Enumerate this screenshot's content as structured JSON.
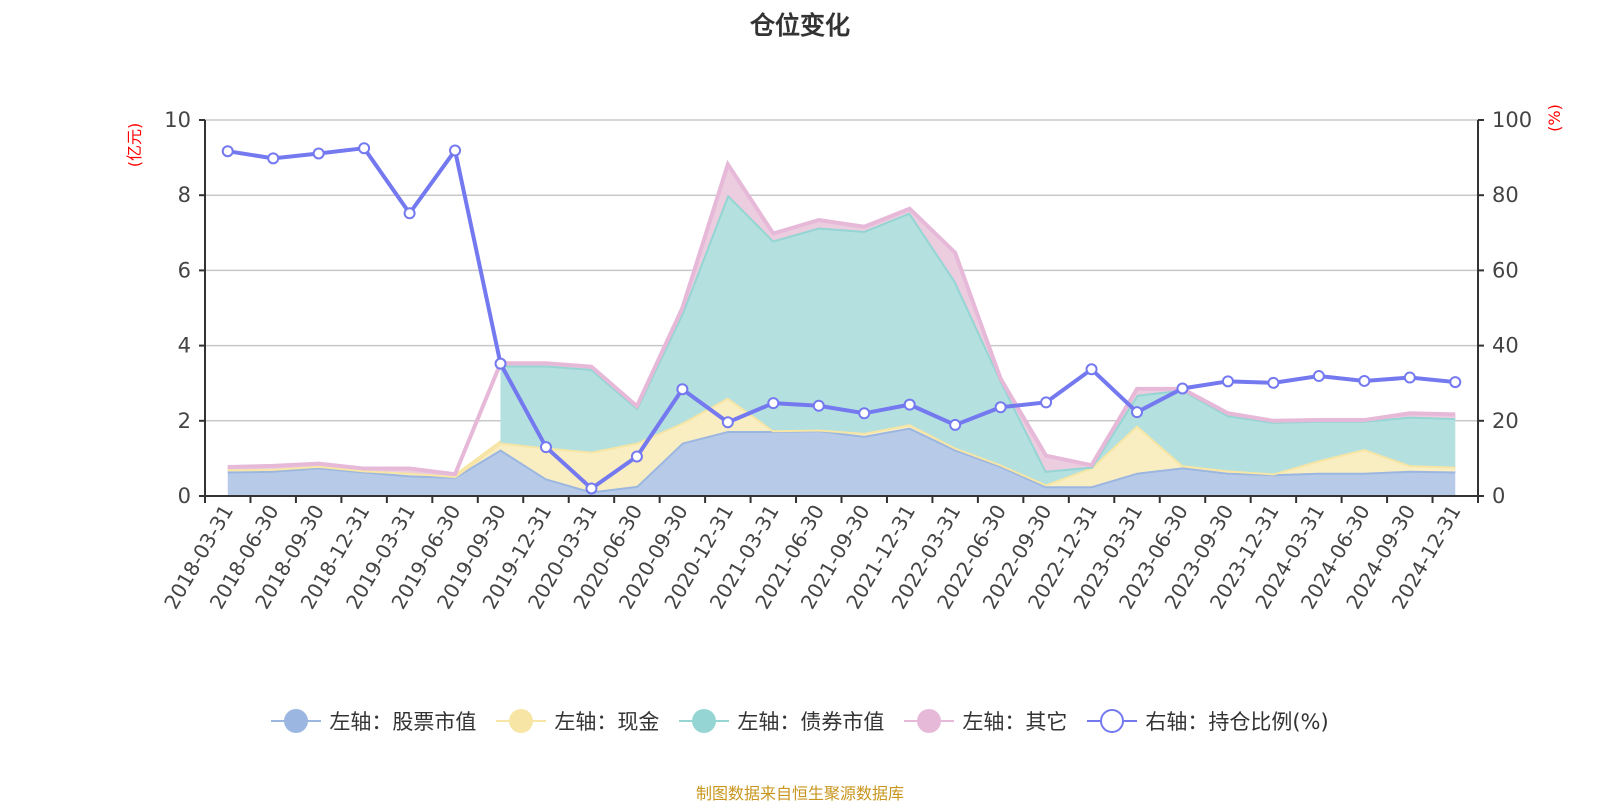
{
  "chart_data": {
    "type": "area",
    "title": "仓位变化",
    "left_axis_unit": "(亿元)",
    "right_axis_unit": "(%)",
    "left_ylim": [
      0,
      10
    ],
    "left_ticks": [
      "0",
      "2",
      "4",
      "6",
      "8",
      "10"
    ],
    "right_ylim": [
      0,
      100
    ],
    "right_ticks": [
      "0",
      "20",
      "40",
      "60",
      "80",
      "100"
    ],
    "grid": true,
    "legend_position": "bottom",
    "categories": [
      "2018-03-31",
      "2018-06-30",
      "2018-09-30",
      "2018-12-31",
      "2019-03-31",
      "2019-06-30",
      "2019-09-30",
      "2019-12-31",
      "2020-03-31",
      "2020-06-30",
      "2020-09-30",
      "2020-12-31",
      "2021-03-31",
      "2021-06-30",
      "2021-09-30",
      "2021-12-31",
      "2022-03-31",
      "2022-06-30",
      "2022-09-30",
      "2022-12-31",
      "2023-03-31",
      "2023-06-30",
      "2023-09-30",
      "2023-12-31",
      "2024-03-31",
      "2024-06-30",
      "2024-09-30",
      "2024-12-31"
    ],
    "series": [
      {
        "name": "左轴：股票市值",
        "axis": "left",
        "stacked": true,
        "color": "#9bb6e0",
        "fill": "#b7cbe8",
        "values": [
          0.65,
          0.67,
          0.76,
          0.65,
          0.55,
          0.51,
          1.24,
          0.47,
          0.12,
          0.27,
          1.42,
          1.73,
          1.73,
          1.75,
          1.6,
          1.82,
          1.24,
          0.8,
          0.26,
          0.26,
          0.62,
          0.76,
          0.62,
          0.58,
          0.62,
          0.62,
          0.67,
          0.65
        ]
      },
      {
        "name": "左轴：现金",
        "axis": "left",
        "stacked": true,
        "color": "#f6e5a4",
        "fill": "#f9edc2",
        "values": [
          0.06,
          0.05,
          0.04,
          0.03,
          0.07,
          0.02,
          0.18,
          0.82,
          1.06,
          1.15,
          0.53,
          0.89,
          0.02,
          0.02,
          0.08,
          0.09,
          0.05,
          0.04,
          0.05,
          0.5,
          1.26,
          0.06,
          0.06,
          0.02,
          0.33,
          0.63,
          0.15,
          0.13
        ]
      },
      {
        "name": "左轴：债券市值",
        "axis": "left",
        "stacked": true,
        "color": "#95d5d3",
        "fill": "#b4e0e0",
        "values": [
          null,
          null,
          null,
          null,
          null,
          null,
          2.05,
          2.18,
          2.2,
          0.93,
          2.93,
          5.4,
          5.05,
          5.37,
          5.37,
          5.63,
          4.43,
          2.26,
          0.36,
          0.02,
          0.81,
          2.01,
          1.47,
          1.37,
          1.05,
          0.75,
          1.29,
          1.29
        ]
      },
      {
        "name": "左轴：其它",
        "axis": "left",
        "stacked": true,
        "color": "#e7b9d9",
        "fill": "#ecccdf",
        "values": [
          0.06,
          0.08,
          0.06,
          0.05,
          0.11,
          0.05,
          0.06,
          0.06,
          0.06,
          0.04,
          0.12,
          0.8,
          0.18,
          0.2,
          0.11,
          0.1,
          0.75,
          0.02,
          0.4,
          0.04,
          0.16,
          0.02,
          0.05,
          0.03,
          0.02,
          0.02,
          0.09,
          0.1
        ]
      },
      {
        "name": "右轴：持仓比例(%)",
        "axis": "right",
        "type": "line",
        "color": "#7479f0",
        "values": [
          91.7,
          89.8,
          91.1,
          92.5,
          75.2,
          91.9,
          35.2,
          13.0,
          2.0,
          10.5,
          28.4,
          19.6,
          24.7,
          24.0,
          22.0,
          24.3,
          18.9,
          23.6,
          24.9,
          33.7,
          22.3,
          28.6,
          30.5,
          30.1,
          31.9,
          30.6,
          31.5,
          30.3
        ]
      }
    ]
  },
  "footer": "制图数据来自恒生聚源数据库"
}
